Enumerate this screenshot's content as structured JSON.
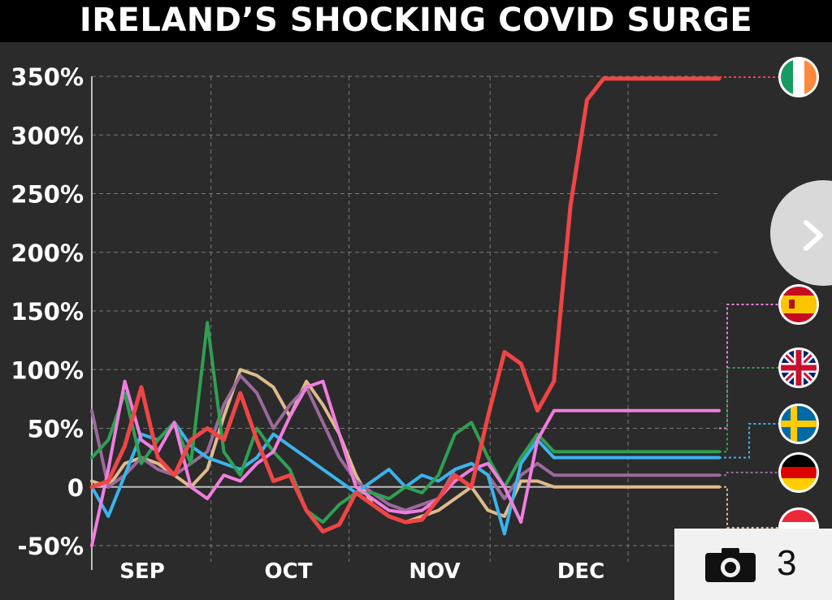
{
  "header": {
    "title": "IRELAND’S SHOCKING COVID SURGE"
  },
  "gallery": {
    "count": "3",
    "icon": "camera-icon"
  },
  "next_button": {
    "icon": "chevron-right-icon"
  },
  "colors": {
    "background": "#2b2b2b",
    "grid": "#7a7a7a",
    "text": "#ffffff",
    "ireland": "#f04545",
    "spain": "#f07ee0",
    "uk": "#2fa052",
    "sweden": "#39b4ee",
    "germany": "#9b6a9b",
    "austria": "#e0bb8d"
  },
  "legend": [
    {
      "country": "Ireland",
      "flag": "ireland-flag-icon",
      "series": "Ireland"
    },
    {
      "country": "Spain",
      "flag": "spain-flag-icon",
      "series": "Spain"
    },
    {
      "country": "UK",
      "flag": "uk-flag-icon",
      "series": "UK"
    },
    {
      "country": "Sweden",
      "flag": "sweden-flag-icon",
      "series": "Sweden"
    },
    {
      "country": "Germany",
      "flag": "germany-flag-icon",
      "series": "Germany"
    },
    {
      "country": "Austria",
      "flag": "austria-flag-icon",
      "series": "Austria"
    }
  ],
  "chart_data": {
    "type": "line",
    "title": "IRELAND’S SHOCKING COVID SURGE",
    "xlabel": "",
    "ylabel": "",
    "x_tick_labels": [
      "SEP",
      "OCT",
      "NOV",
      "DEC"
    ],
    "y_tick_labels": [
      "-50%",
      "0",
      "50%",
      "100%",
      "150%",
      "200%",
      "250%",
      "300%",
      "350%"
    ],
    "ylim": [
      -50,
      350
    ],
    "grid": true,
    "legend": "right, flag icons",
    "x": [
      0,
      7,
      14,
      21,
      28,
      35,
      42,
      49,
      56,
      63,
      70,
      77,
      84,
      91,
      98,
      105,
      112,
      119,
      126,
      133,
      140,
      147,
      154,
      161,
      168,
      175,
      182,
      189,
      196,
      203,
      210,
      217,
      224,
      231,
      238,
      245,
      252,
      259,
      266
    ],
    "series": [
      {
        "name": "Ireland",
        "values": [
          0,
          5,
          35,
          85,
          25,
          10,
          40,
          50,
          40,
          80,
          40,
          5,
          10,
          -20,
          -38,
          -32,
          -5,
          -15,
          -25,
          -30,
          -28,
          -10,
          10,
          0,
          60,
          115,
          105,
          65,
          90,
          240,
          330,
          348,
          348,
          348,
          348,
          348,
          348,
          348,
          348
        ]
      },
      {
        "name": "Spain",
        "values": [
          -50,
          15,
          90,
          40,
          30,
          55,
          0,
          -10,
          10,
          5,
          20,
          30,
          60,
          85,
          90,
          45,
          0,
          -10,
          -20,
          -22,
          -20,
          -10,
          5,
          15,
          20,
          0,
          -30,
          40,
          65,
          65,
          65,
          65,
          65,
          65,
          65,
          65,
          65,
          65,
          65
        ]
      },
      {
        "name": "UK",
        "values": [
          25,
          40,
          80,
          20,
          40,
          55,
          20,
          140,
          30,
          10,
          50,
          30,
          15,
          -20,
          -30,
          -15,
          -5,
          -5,
          -10,
          0,
          -5,
          10,
          45,
          55,
          25,
          0,
          25,
          45,
          30,
          30,
          30,
          30,
          30,
          30,
          30,
          30,
          30,
          30,
          30
        ]
      },
      {
        "name": "Sweden",
        "values": [
          0,
          -25,
          10,
          45,
          40,
          55,
          35,
          25,
          20,
          15,
          25,
          45,
          35,
          25,
          15,
          5,
          -5,
          5,
          15,
          0,
          10,
          5,
          15,
          20,
          10,
          -40,
          20,
          40,
          25,
          25,
          25,
          25,
          25,
          25,
          25,
          25,
          25,
          25,
          25
        ]
      },
      {
        "name": "Germany",
        "values": [
          65,
          0,
          10,
          25,
          15,
          10,
          20,
          30,
          70,
          95,
          80,
          50,
          70,
          85,
          55,
          25,
          5,
          -5,
          -15,
          -20,
          -15,
          -10,
          15,
          20,
          10,
          -10,
          10,
          20,
          10,
          10,
          10,
          10,
          10,
          10,
          10,
          10,
          10,
          10,
          10
        ]
      },
      {
        "name": "Austria",
        "values": [
          5,
          0,
          20,
          25,
          20,
          10,
          0,
          15,
          60,
          100,
          95,
          85,
          60,
          90,
          70,
          45,
          10,
          -15,
          -25,
          -30,
          -25,
          -20,
          -10,
          0,
          -20,
          -25,
          5,
          5,
          0,
          0,
          0,
          0,
          0,
          0,
          0,
          0,
          0,
          0,
          0
        ]
      }
    ]
  }
}
